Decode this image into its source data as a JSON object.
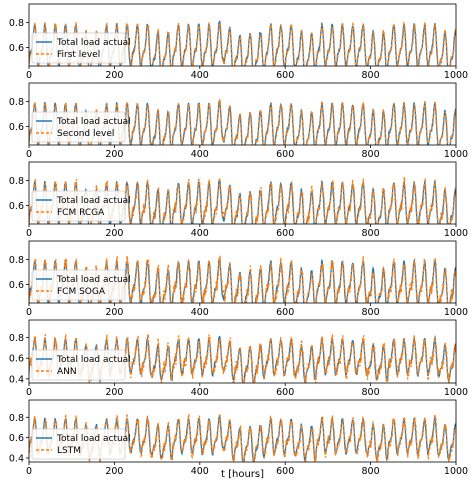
{
  "figure": {
    "xlabel": "t [hours]"
  },
  "chart_data": [
    {
      "type": "line",
      "x_range": [
        0,
        1000
      ],
      "ylim": [
        0.45,
        0.95
      ],
      "xticks": [
        0,
        200,
        400,
        600,
        800,
        1000
      ],
      "xtick_labels": [
        "0",
        "200",
        "400",
        "600",
        "800",
        "1000"
      ],
      "yticks": [
        0.6,
        0.8
      ],
      "ytick_labels": [
        "0.6",
        "0.8"
      ],
      "legend": "lower-left",
      "series": [
        {
          "name": "Total load actual",
          "color": "#1f77b4",
          "style": "solid"
        },
        {
          "name": "First level",
          "color": "#ff7f0e",
          "style": "dashed"
        }
      ]
    },
    {
      "type": "line",
      "x_range": [
        0,
        1000
      ],
      "ylim": [
        0.45,
        0.95
      ],
      "xticks": [
        0,
        200,
        400,
        600,
        800,
        1000
      ],
      "xtick_labels": [
        "0",
        "200",
        "400",
        "600",
        "800",
        "1000"
      ],
      "yticks": [
        0.6,
        0.8
      ],
      "ytick_labels": [
        "0.6",
        "0.8"
      ],
      "legend": "lower-left",
      "series": [
        {
          "name": "Total load actual",
          "color": "#1f77b4",
          "style": "solid"
        },
        {
          "name": "Second level",
          "color": "#ff7f0e",
          "style": "dashed"
        }
      ]
    },
    {
      "type": "line",
      "x_range": [
        0,
        1000
      ],
      "ylim": [
        0.45,
        0.95
      ],
      "xticks": [
        0,
        200,
        400,
        600,
        800,
        1000
      ],
      "xtick_labels": [
        "0",
        "200",
        "400",
        "600",
        "800",
        "1000"
      ],
      "yticks": [
        0.6,
        0.8
      ],
      "ytick_labels": [
        "0.6",
        "0.8"
      ],
      "legend": "lower-left",
      "series": [
        {
          "name": "Total load actual",
          "color": "#1f77b4",
          "style": "solid"
        },
        {
          "name": "FCM RCGA",
          "color": "#ff7f0e",
          "style": "dashed"
        }
      ]
    },
    {
      "type": "line",
      "x_range": [
        0,
        1000
      ],
      "ylim": [
        0.45,
        0.95
      ],
      "xticks": [
        0,
        200,
        400,
        600,
        800,
        1000
      ],
      "xtick_labels": [
        "0",
        "200",
        "400",
        "600",
        "800",
        "1000"
      ],
      "yticks": [
        0.6,
        0.8
      ],
      "ytick_labels": [
        "0.6",
        "0.8"
      ],
      "legend": "lower-left",
      "series": [
        {
          "name": "Total load actual",
          "color": "#1f77b4",
          "style": "solid"
        },
        {
          "name": "FCM SOGA",
          "color": "#ff7f0e",
          "style": "dashed"
        }
      ]
    },
    {
      "type": "line",
      "x_range": [
        0,
        1000
      ],
      "ylim": [
        0.36,
        0.97
      ],
      "xticks": [
        0,
        200,
        400,
        600,
        800,
        1000
      ],
      "xtick_labels": [
        "0",
        "200",
        "400",
        "600",
        "800",
        "1000"
      ],
      "yticks": [
        0.4,
        0.6,
        0.8
      ],
      "ytick_labels": [
        "0.4",
        "0.6",
        "0.8"
      ],
      "legend": "lower-left",
      "series": [
        {
          "name": "Total load actual",
          "color": "#1f77b4",
          "style": "solid"
        },
        {
          "name": "ANN",
          "color": "#ff7f0e",
          "style": "dashed"
        }
      ]
    },
    {
      "type": "line",
      "x_range": [
        0,
        1000
      ],
      "ylim": [
        0.36,
        0.97
      ],
      "xticks": [
        0,
        200,
        400,
        600,
        800,
        1000
      ],
      "xtick_labels": [
        "0",
        "200",
        "400",
        "600",
        "800",
        "1000"
      ],
      "yticks": [
        0.4,
        0.6,
        0.8
      ],
      "ytick_labels": [
        "0.4",
        "0.6",
        "0.8"
      ],
      "legend": "lower-left",
      "series": [
        {
          "name": "Total load actual",
          "color": "#1f77b4",
          "style": "solid"
        },
        {
          "name": "LSTM",
          "color": "#ff7f0e",
          "style": "dashed"
        }
      ]
    }
  ]
}
